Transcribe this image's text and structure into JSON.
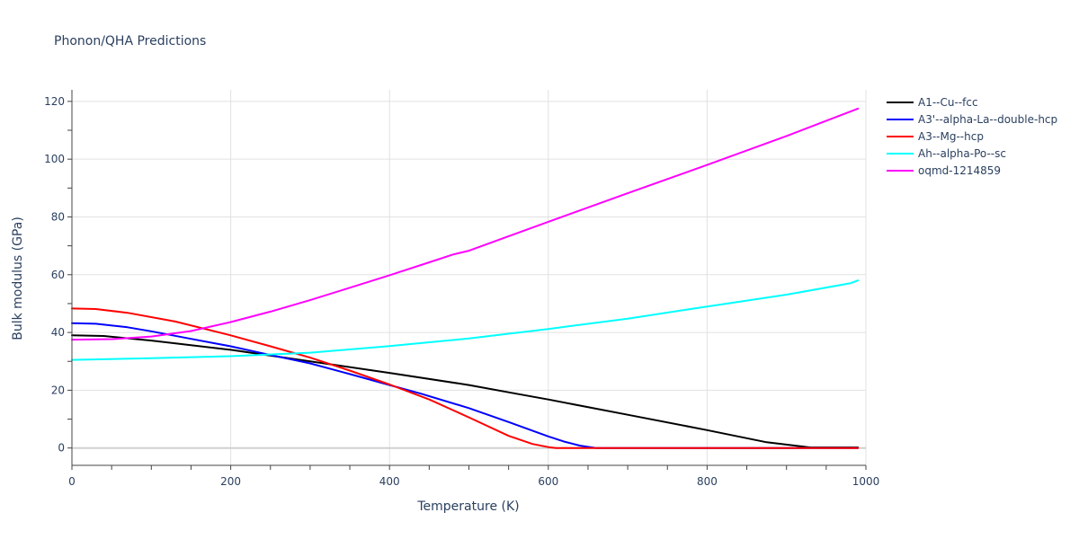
{
  "chart_data": {
    "type": "line",
    "title": "Phonon/QHA Predictions",
    "xlabel": "Temperature (K)",
    "ylabel": "Bulk modulus (GPa)",
    "xlim": [
      0,
      1000
    ],
    "ylim": [
      -6,
      124
    ],
    "xticks": [
      0,
      200,
      400,
      600,
      800,
      1000
    ],
    "yticks": [
      0,
      20,
      40,
      60,
      80,
      100,
      120
    ],
    "grid": true,
    "legend_position": "top-right",
    "series": [
      {
        "name": "A1--Cu--fcc",
        "color": "#000000",
        "x": [
          0,
          40,
          100,
          200,
          300,
          400,
          500,
          560,
          600,
          700,
          800,
          875,
          930,
          990
        ],
        "y": [
          39,
          38.8,
          37.2,
          34,
          30,
          26,
          21.8,
          18.8,
          16.8,
          11.5,
          6.2,
          2,
          0.2,
          0.2
        ]
      },
      {
        "name": "A3'--alpha-La--double-hcp",
        "color": "#0000ff",
        "x": [
          0,
          30,
          70,
          100,
          150,
          200,
          250,
          300,
          350,
          400,
          440,
          500,
          550,
          600,
          620,
          640,
          660,
          700,
          990
        ],
        "y": [
          43.2,
          43,
          41.8,
          40.4,
          37.8,
          35.2,
          32.2,
          29.3,
          25.6,
          21.8,
          18.8,
          13.8,
          9,
          4,
          2.2,
          0.8,
          0,
          0,
          0
        ]
      },
      {
        "name": "A3--Mg--hcp",
        "color": "#ff0000",
        "x": [
          0,
          30,
          70,
          130,
          200,
          250,
          300,
          350,
          400,
          450,
          500,
          550,
          580,
          600,
          610,
          650,
          990
        ],
        "y": [
          48.3,
          48.1,
          46.8,
          43.8,
          39,
          35.2,
          31.3,
          26.8,
          22,
          16.8,
          10.6,
          4.2,
          1.4,
          0.3,
          0,
          0,
          0
        ]
      },
      {
        "name": "Ah--alpha-Po--sc",
        "color": "#00ffff",
        "x": [
          0,
          100,
          200,
          300,
          400,
          500,
          600,
          700,
          800,
          900,
          980,
          990
        ],
        "y": [
          30.5,
          31.1,
          31.8,
          33,
          35.3,
          37.9,
          41.2,
          44.8,
          49,
          53.1,
          57,
          58
        ]
      },
      {
        "name": "oqmd-1214859",
        "color": "#ff00ff",
        "x": [
          0,
          50,
          100,
          150,
          200,
          250,
          300,
          350,
          400,
          450,
          480,
          500,
          600,
          700,
          800,
          900,
          990
        ],
        "y": [
          37.5,
          37.7,
          38.6,
          40.5,
          43.6,
          47.2,
          51.2,
          55.5,
          59.8,
          64.3,
          67,
          68.3,
          78.3,
          88.2,
          98,
          108,
          117.5
        ]
      }
    ]
  }
}
